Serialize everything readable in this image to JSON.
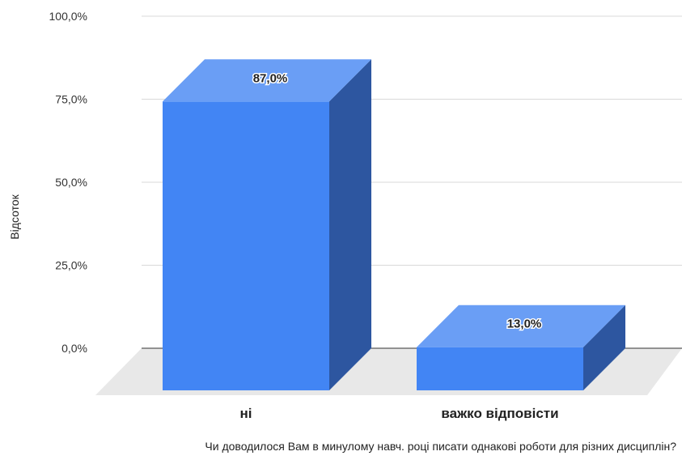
{
  "chart_data": {
    "type": "bar",
    "categories": [
      "ні",
      "важко відповісти"
    ],
    "values": [
      87.0,
      13.0
    ],
    "value_labels": [
      "87,0%",
      "13,0%"
    ],
    "ylabel": "Відсоток",
    "xlabel": "Чи доводилося Вам в минулому навч. році  писати однакові роботи для різних дисциплін?",
    "y_ticks": [
      "100,0%",
      "75,0%",
      "50,0%",
      "25,0%",
      "0,0%"
    ],
    "ylim": [
      0,
      100
    ],
    "grid": true,
    "style": "3d",
    "colors": {
      "bar_front": "#4285f4",
      "bar_top": "#6a9ef5",
      "bar_side": "#2d56a0",
      "floor": "#e8e8e8",
      "grid": "#d9d9d9",
      "axis": "#333333"
    }
  }
}
